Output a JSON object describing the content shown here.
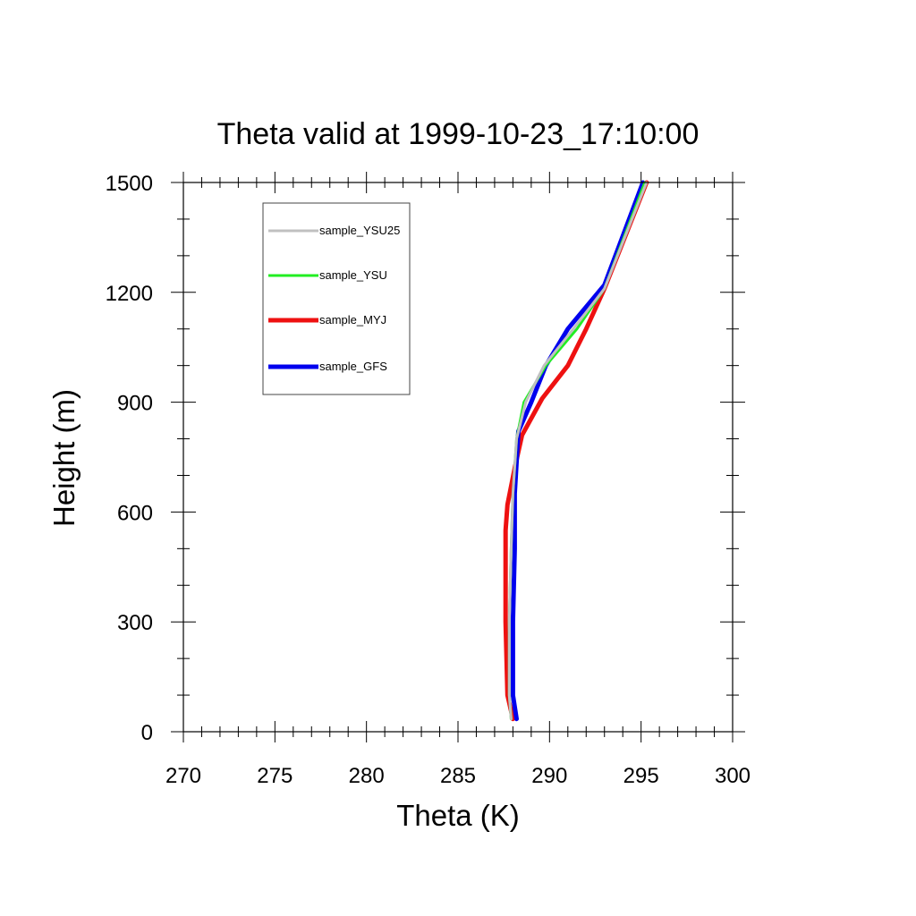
{
  "chart_data": {
    "type": "line",
    "title": "Theta valid at 1999-10-23_17:10:00",
    "xlabel": "Theta (K)",
    "ylabel": "Height (m)",
    "xlim": [
      270,
      300
    ],
    "ylim": [
      0,
      1500
    ],
    "xticks": [
      "270",
      "275",
      "280",
      "285",
      "290",
      "295",
      "300"
    ],
    "yticks": [
      "0",
      "300",
      "600",
      "900",
      "1200",
      "1500"
    ],
    "grid": false,
    "legend_position": "top-left",
    "series": [
      {
        "name": "sample_YSU25",
        "color": "#c0c0c0",
        "x": [
          287.9,
          287.8,
          287.8,
          287.9,
          288.0,
          288.2,
          288.7,
          289.7,
          291.3,
          293.0,
          295.3
        ],
        "y": [
          35,
          100,
          300,
          500,
          650,
          800,
          900,
          1000,
          1100,
          1210,
          1500
        ]
      },
      {
        "name": "sample_YSU",
        "color": "#22ee22",
        "x": [
          287.9,
          287.8,
          287.8,
          287.9,
          288.0,
          288.2,
          288.6,
          289.8,
          291.5,
          293.0,
          295.2
        ],
        "y": [
          35,
          100,
          300,
          500,
          650,
          800,
          900,
          1000,
          1100,
          1210,
          1500
        ]
      },
      {
        "name": "sample_MYJ",
        "color": "#ee1111",
        "x": [
          288.0,
          287.7,
          287.6,
          287.6,
          287.7,
          288.1,
          288.5,
          289.6,
          291.0,
          292.0,
          293.0,
          295.3
        ],
        "y": [
          35,
          100,
          300,
          550,
          620,
          720,
          810,
          910,
          1000,
          1100,
          1210,
          1500
        ]
      },
      {
        "name": "sample_GFS",
        "color": "#0000ee",
        "x": [
          288.2,
          288.0,
          288.0,
          288.1,
          288.1,
          288.3,
          289.0,
          289.8,
          291.0,
          293.0,
          295.1
        ],
        "y": [
          35,
          100,
          300,
          500,
          650,
          820,
          900,
          1000,
          1100,
          1220,
          1500
        ]
      }
    ]
  }
}
